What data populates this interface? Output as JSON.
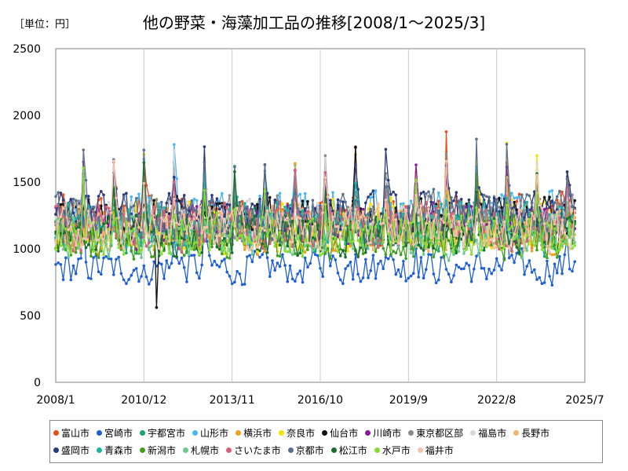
{
  "unit_label": "［単位：円］",
  "chart_data": {
    "type": "line",
    "title": "他の野菜・海藻加工品の推移[2008/1～2025/3]",
    "x_tick_labels": [
      "2008/1",
      "2010/12",
      "2013/11",
      "2016/10",
      "2019/9",
      "2022/8",
      "2025/7"
    ],
    "xlim": [
      "2008/1",
      "2025/7"
    ],
    "ylim": [
      0,
      2500
    ],
    "y_ticks": [
      0,
      500,
      1000,
      1500,
      2000,
      2500
    ],
    "grid": "vertical",
    "legend_position": "bottom",
    "series": [
      {
        "name": "富山市",
        "color": "#e84e1b",
        "base": 1200,
        "amp": 220
      },
      {
        "name": "宮崎市",
        "color": "#1f5fd6",
        "base": 860,
        "amp": 130
      },
      {
        "name": "宇都宮市",
        "color": "#1aa36e",
        "base": 1120,
        "amp": 180
      },
      {
        "name": "山形市",
        "color": "#4db8f0",
        "base": 1250,
        "amp": 200
      },
      {
        "name": "横浜市",
        "color": "#f0a020",
        "base": 1150,
        "amp": 190
      },
      {
        "name": "奈良市",
        "color": "#f5e400",
        "base": 1180,
        "amp": 200
      },
      {
        "name": "仙台市",
        "color": "#111111",
        "base": 1220,
        "amp": 170
      },
      {
        "name": "川崎市",
        "color": "#8a1a9b",
        "base": 1180,
        "amp": 170
      },
      {
        "name": "東京都区部",
        "color": "#8a8a8a",
        "base": 1230,
        "amp": 170
      },
      {
        "name": "福島市",
        "color": "#d8d8d8",
        "base": 1200,
        "amp": 170
      },
      {
        "name": "長野市",
        "color": "#f2b46a",
        "base": 1140,
        "amp": 170
      },
      {
        "name": "盛岡市",
        "color": "#2b3a7a",
        "base": 1240,
        "amp": 180
      },
      {
        "name": "青森市",
        "color": "#18b5a0",
        "base": 1180,
        "amp": 180
      },
      {
        "name": "新潟市",
        "color": "#3f9e1e",
        "base": 1080,
        "amp": 170
      },
      {
        "name": "札幌市",
        "color": "#6cc98e",
        "base": 1100,
        "amp": 170
      },
      {
        "name": "さいたま市",
        "color": "#d6607a",
        "base": 1160,
        "amp": 180
      },
      {
        "name": "京都市",
        "color": "#5a7090",
        "base": 1230,
        "amp": 200
      },
      {
        "name": "松江市",
        "color": "#1a6e2e",
        "base": 1100,
        "amp": 160
      },
      {
        "name": "水戸市",
        "color": "#88dd33",
        "base": 1100,
        "amp": 160
      },
      {
        "name": "福井市",
        "color": "#f4c3b0",
        "base": 1160,
        "amp": 170
      }
    ]
  }
}
